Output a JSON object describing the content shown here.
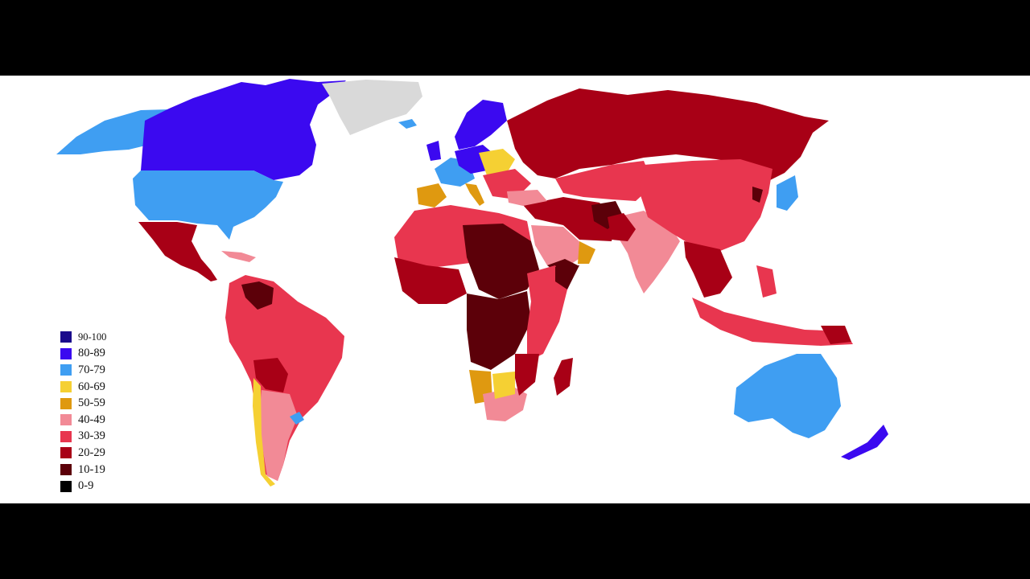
{
  "legend": {
    "items": [
      {
        "label": "90-100",
        "color": "#1a0a8c"
      },
      {
        "label": "80-89",
        "color": "#3b09f0"
      },
      {
        "label": "70-79",
        "color": "#3f9ef2"
      },
      {
        "label": "60-69",
        "color": "#f5d033"
      },
      {
        "label": "50-59",
        "color": "#df9910"
      },
      {
        "label": "40-49",
        "color": "#f28a96"
      },
      {
        "label": "30-39",
        "color": "#e8364f"
      },
      {
        "label": "20-29",
        "color": "#a80016"
      },
      {
        "label": "10-19",
        "color": "#5c0009"
      },
      {
        "label": "0-9",
        "color": "#000000"
      }
    ]
  },
  "colors": {
    "no_data": "#d9d9d9",
    "ocean": "#ffffff",
    "letterbox": "#000000"
  }
}
